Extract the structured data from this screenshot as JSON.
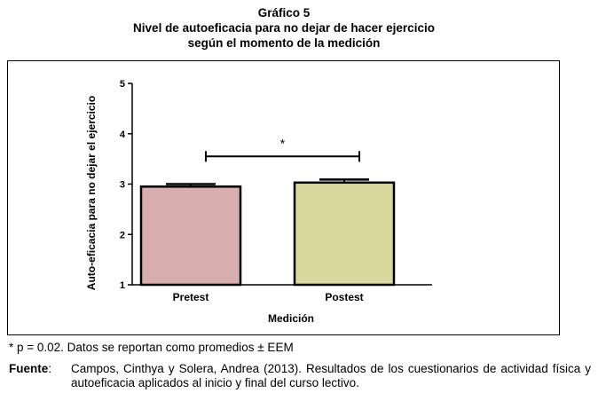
{
  "header": {
    "number": "Gráfico 5",
    "title_line1": "Nivel de autoeficacia para no dejar de hacer ejercicio",
    "title_line2": "según el momento de la medición"
  },
  "chart_data": {
    "type": "bar",
    "categories": [
      "Pretest",
      "Postest"
    ],
    "values": [
      2.95,
      3.03
    ],
    "errors": [
      0.05,
      0.06
    ],
    "bar_colors": [
      "#d8adae",
      "#d9d89f"
    ],
    "xlabel": "Medición",
    "ylabel": "Auto-eficacia para no dejar el ejercicio",
    "ylim": [
      1,
      5
    ],
    "yticks": [
      "1",
      "2",
      "3",
      "4",
      "5"
    ],
    "significance": {
      "label": "*",
      "between": [
        "Pretest",
        "Postest"
      ],
      "y": 3.55
    },
    "grid": false,
    "legend": "none"
  },
  "footer": {
    "note": "* p = 0.02. Datos se reportan como promedios ± EEM",
    "source_label": "Fuente",
    "source_sep": ":",
    "source_text": "Campos, Cinthya y Solera, Andrea (2013). Resultados de los cuestionarios de actividad física y autoeficacia aplicados al inicio y final del curso lectivo."
  }
}
